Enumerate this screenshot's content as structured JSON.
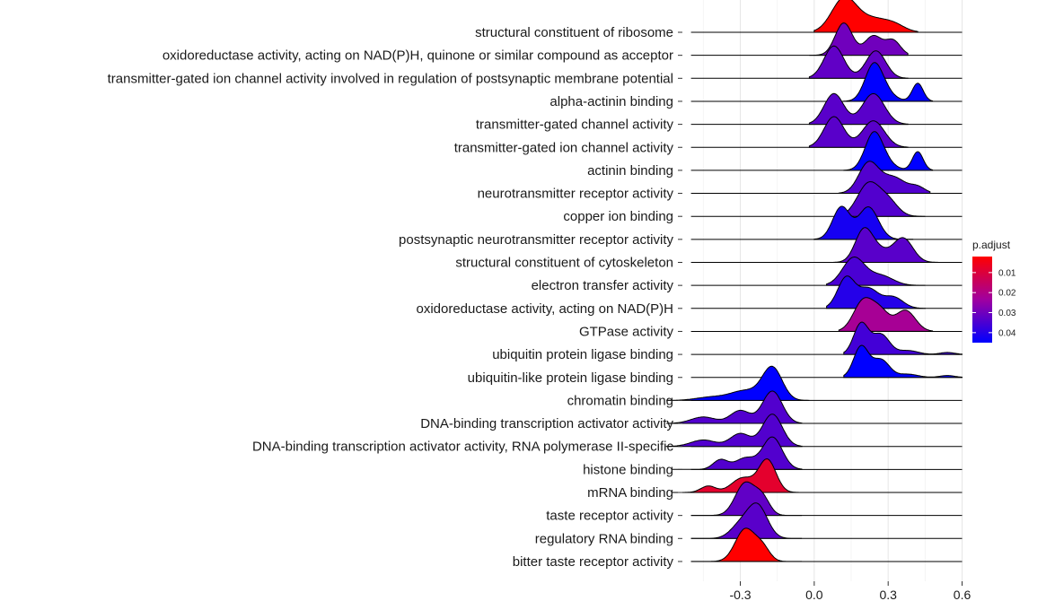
{
  "chart_data": {
    "type": "ridgeline",
    "xlim": [
      -0.535,
      0.66
    ],
    "x_ticks": [
      -0.3,
      0.0,
      0.3,
      0.6
    ],
    "x_tick_labels": [
      "-0.3",
      "0.0",
      "0.3",
      "0.6"
    ],
    "xlabel": "",
    "ylabel": "",
    "grid": true,
    "legend": {
      "title": "p.adjust",
      "placement": "right",
      "type": "colorbar",
      "range": [
        0.002,
        0.045
      ],
      "ticks": [
        0.01,
        0.02,
        0.03,
        0.04
      ],
      "tick_labels": [
        "0.01",
        "0.02",
        "0.03",
        "0.04"
      ],
      "low_color": "#ff0000",
      "high_color": "#0000ff"
    },
    "categories": [
      {
        "label": "structural constituent of ribosome",
        "p_adjust": 0.002,
        "range": [
          0.0,
          0.42
        ],
        "peaks": [
          [
            0.12,
            0.05,
            1.0
          ],
          [
            0.24,
            0.07,
            0.42
          ],
          [
            0.33,
            0.04,
            0.12
          ]
        ]
      },
      {
        "label": "oxidoreductase activity, acting on NAD(P)H, quinone or similar compound as acceptor",
        "p_adjust": 0.03,
        "range": [
          -0.02,
          0.38
        ],
        "peaks": [
          [
            0.12,
            0.035,
            1.0
          ],
          [
            0.24,
            0.035,
            0.6
          ],
          [
            0.32,
            0.03,
            0.45
          ]
        ]
      },
      {
        "label": "transmitter-gated ion channel activity involved in regulation of postsynaptic membrane potential",
        "p_adjust": 0.032,
        "range": [
          -0.02,
          0.38
        ],
        "peaks": [
          [
            0.08,
            0.04,
            1.0
          ],
          [
            0.25,
            0.04,
            0.85
          ]
        ]
      },
      {
        "label": "alpha-actinin binding",
        "p_adjust": 0.045,
        "range": [
          0.12,
          0.48
        ],
        "peaks": [
          [
            0.24,
            0.035,
            1.0
          ],
          [
            0.27,
            0.045,
            0.4
          ],
          [
            0.42,
            0.022,
            0.62
          ]
        ]
      },
      {
        "label": "transmitter-gated channel activity",
        "p_adjust": 0.033,
        "range": [
          -0.02,
          0.38
        ],
        "peaks": [
          [
            0.08,
            0.04,
            0.95
          ],
          [
            0.24,
            0.045,
            0.95
          ]
        ]
      },
      {
        "label": "transmitter-gated ion channel activity",
        "p_adjust": 0.033,
        "range": [
          -0.02,
          0.38
        ],
        "peaks": [
          [
            0.08,
            0.04,
            0.95
          ],
          [
            0.24,
            0.045,
            0.82
          ]
        ]
      },
      {
        "label": "actinin binding",
        "p_adjust": 0.045,
        "range": [
          0.12,
          0.48
        ],
        "peaks": [
          [
            0.24,
            0.035,
            1.0
          ],
          [
            0.27,
            0.045,
            0.35
          ],
          [
            0.42,
            0.022,
            0.62
          ]
        ]
      },
      {
        "label": "neurotransmitter receptor activity",
        "p_adjust": 0.034,
        "range": [
          0.1,
          0.47
        ],
        "peaks": [
          [
            0.22,
            0.04,
            0.92
          ],
          [
            0.32,
            0.05,
            0.5
          ],
          [
            0.42,
            0.03,
            0.18
          ]
        ]
      },
      {
        "label": "copper ion binding",
        "p_adjust": 0.034,
        "range": [
          0.1,
          0.45
        ],
        "peaks": [
          [
            0.22,
            0.045,
            1.0
          ],
          [
            0.3,
            0.04,
            0.45
          ]
        ]
      },
      {
        "label": "postsynaptic neurotransmitter receptor activity",
        "p_adjust": 0.042,
        "range": [
          0.0,
          0.4
        ],
        "peaks": [
          [
            0.11,
            0.035,
            1.0
          ],
          [
            0.22,
            0.04,
            1.0
          ]
        ]
      },
      {
        "label": "structural constituent of cytoskeleton",
        "p_adjust": 0.033,
        "range": [
          0.08,
          0.5
        ],
        "peaks": [
          [
            0.2,
            0.035,
            0.95
          ],
          [
            0.26,
            0.04,
            0.35
          ],
          [
            0.36,
            0.04,
            0.75
          ]
        ]
      },
      {
        "label": "electron transfer activity",
        "p_adjust": 0.035,
        "range": [
          0.05,
          0.45
        ],
        "peaks": [
          [
            0.16,
            0.045,
            0.85
          ],
          [
            0.27,
            0.05,
            0.3
          ]
        ]
      },
      {
        "label": "oxidoreductase activity, acting on NAD(P)H",
        "p_adjust": 0.04,
        "range": [
          0.05,
          0.45
        ],
        "peaks": [
          [
            0.13,
            0.035,
            0.95
          ],
          [
            0.22,
            0.04,
            0.6
          ],
          [
            0.32,
            0.04,
            0.35
          ]
        ]
      },
      {
        "label": "GTPase activity",
        "p_adjust": 0.022,
        "range": [
          0.1,
          0.48
        ],
        "peaks": [
          [
            0.2,
            0.04,
            0.95
          ],
          [
            0.27,
            0.035,
            0.55
          ],
          [
            0.37,
            0.04,
            0.65
          ]
        ]
      },
      {
        "label": "ubiquitin protein ligase binding",
        "p_adjust": 0.036,
        "range": [
          0.12,
          0.6
        ],
        "peaks": [
          [
            0.19,
            0.03,
            0.95
          ],
          [
            0.27,
            0.035,
            0.62
          ],
          [
            0.38,
            0.04,
            0.12
          ],
          [
            0.54,
            0.03,
            0.06
          ]
        ]
      },
      {
        "label": "ubiquitin-like protein ligase binding",
        "p_adjust": 0.045,
        "range": [
          0.12,
          0.6
        ],
        "peaks": [
          [
            0.19,
            0.03,
            0.95
          ],
          [
            0.27,
            0.035,
            0.55
          ],
          [
            0.38,
            0.04,
            0.1
          ],
          [
            0.54,
            0.03,
            0.06
          ]
        ]
      },
      {
        "label": "chromatin binding",
        "p_adjust": 0.045,
        "range": [
          -0.6,
          -0.02
        ],
        "peaks": [
          [
            -0.17,
            0.04,
            1.0
          ],
          [
            -0.28,
            0.06,
            0.3
          ],
          [
            -0.42,
            0.06,
            0.1
          ]
        ]
      },
      {
        "label": "DNA-binding transcription activator activity",
        "p_adjust": 0.034,
        "range": [
          -0.6,
          -0.05
        ],
        "peaks": [
          [
            -0.17,
            0.04,
            1.0
          ],
          [
            -0.3,
            0.04,
            0.4
          ],
          [
            -0.45,
            0.05,
            0.2
          ]
        ]
      },
      {
        "label": "DNA-binding transcription activator activity, RNA polymerase II-specific",
        "p_adjust": 0.034,
        "range": [
          -0.6,
          -0.05
        ],
        "peaks": [
          [
            -0.17,
            0.04,
            1.0
          ],
          [
            -0.3,
            0.04,
            0.4
          ],
          [
            -0.45,
            0.05,
            0.2
          ]
        ]
      },
      {
        "label": "histone binding",
        "p_adjust": 0.034,
        "range": [
          -0.58,
          -0.05
        ],
        "peaks": [
          [
            -0.17,
            0.04,
            1.0
          ],
          [
            -0.28,
            0.04,
            0.35
          ],
          [
            -0.38,
            0.03,
            0.3
          ]
        ]
      },
      {
        "label": "mRNA binding",
        "p_adjust": 0.008,
        "range": [
          -0.58,
          -0.05
        ],
        "peaks": [
          [
            -0.19,
            0.035,
            1.0
          ],
          [
            -0.29,
            0.045,
            0.45
          ],
          [
            -0.43,
            0.03,
            0.2
          ]
        ]
      },
      {
        "label": "taste receptor activity",
        "p_adjust": 0.032,
        "range": [
          -0.5,
          -0.05
        ],
        "peaks": [
          [
            -0.28,
            0.04,
            1.0
          ],
          [
            -0.21,
            0.03,
            0.5
          ]
        ]
      },
      {
        "label": "regulatory RNA binding",
        "p_adjust": 0.033,
        "range": [
          -0.5,
          -0.05
        ],
        "peaks": [
          [
            -0.23,
            0.04,
            1.0
          ],
          [
            -0.3,
            0.04,
            0.4
          ]
        ]
      },
      {
        "label": "bitter taste receptor activity",
        "p_adjust": 0.002,
        "range": [
          -0.5,
          -0.05
        ],
        "peaks": [
          [
            -0.28,
            0.04,
            1.0
          ],
          [
            -0.21,
            0.03,
            0.4
          ]
        ]
      }
    ]
  }
}
